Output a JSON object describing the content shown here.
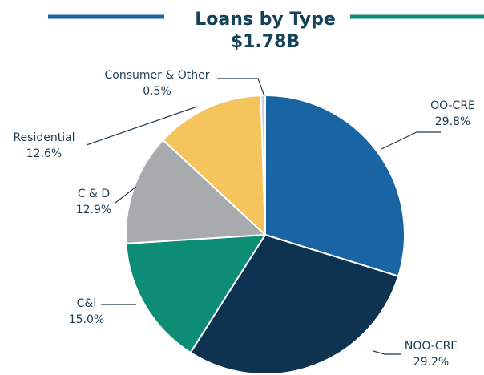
{
  "chart_data": {
    "type": "pie",
    "title": "Loans by Type",
    "subtitle": "$1.78B",
    "colors": {
      "title_rule_left": "#1a63a6",
      "title_rule_right": "#0f8a76",
      "leader_line": "#1d3b50"
    },
    "slices": [
      {
        "label": "OO-CRE",
        "value_label": "29.8%",
        "value": 29.8,
        "color": "#1965a3"
      },
      {
        "label": "NOO-CRE",
        "value_label": "29.2%",
        "value": 29.2,
        "color": "#0d3350"
      },
      {
        "label": "C&I",
        "value_label": "15.0%",
        "value": 15.0,
        "color": "#0e8d76"
      },
      {
        "label": "C & D",
        "value_label": "12.9%",
        "value": 12.9,
        "color": "#a8abae"
      },
      {
        "label": "Residential",
        "value_label": "12.6%",
        "value": 12.6,
        "color": "#f4c55c"
      },
      {
        "label": "Consumer & Other",
        "value_label": "0.5%",
        "value": 0.5,
        "color": "#c9d2da"
      }
    ]
  }
}
